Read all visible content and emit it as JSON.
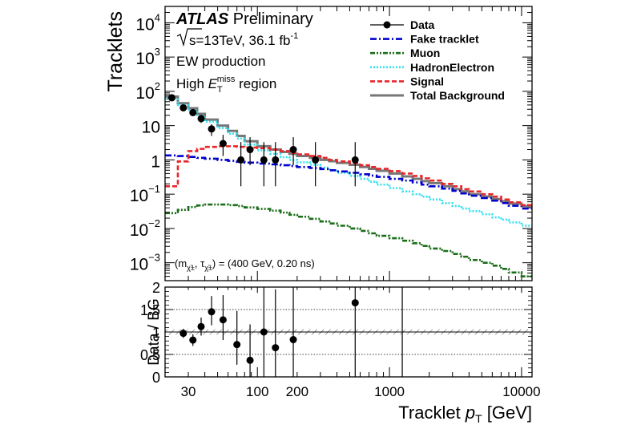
{
  "chart_data": {
    "type": "line",
    "x_scale": "log",
    "y_scale": "log",
    "xlim": [
      20,
      12000
    ],
    "ylim": [
      0.0003,
      30000
    ],
    "ylabel": "Tracklets",
    "xlabel_main": "Tracklet ",
    "xlabel_var": "p",
    "xlabel_sub": "T",
    "xlabel_unit": " [GeV]",
    "x_tick_labels": [
      {
        "value": 30,
        "label": "30"
      },
      {
        "value": 100,
        "label": "100"
      },
      {
        "value": 200,
        "label": "200"
      },
      {
        "value": 1000,
        "label": "1000"
      },
      {
        "value": 10000,
        "label": "10000"
      }
    ],
    "y_tick_labels": [
      {
        "value": 10000,
        "base": "10",
        "exp": "4"
      },
      {
        "value": 1000,
        "base": "10",
        "exp": "3"
      },
      {
        "value": 100,
        "base": "10",
        "exp": "2"
      },
      {
        "value": 10,
        "base": "10",
        "exp": ""
      },
      {
        "value": 1,
        "base": "1",
        "exp": ""
      },
      {
        "value": 0.1,
        "base": "10",
        "exp": "−1"
      },
      {
        "value": 0.01,
        "base": "10",
        "exp": "−2"
      },
      {
        "value": 0.001,
        "base": "10",
        "exp": "−3"
      }
    ],
    "annotations": {
      "atlas": "ATLAS",
      "preliminary": " Preliminary",
      "energy_prefix": "s",
      "energy_rest": "=13TeV, 36.1 fb",
      "energy_exp": "-1",
      "production": "EW production",
      "region_prefix": "High ",
      "region_var": "E",
      "region_sub": "T",
      "region_sup": "miss",
      "region_suffix": " region",
      "model_point": "(m",
      "model_point_rest": ", τ",
      "model_point_end": ") = (400 GeV, 0.20 ns)",
      "chargino_sub": "χ̃±"
    },
    "legend": {
      "placement": "top-right",
      "entries": [
        {
          "label": "Data",
          "style": "marker",
          "color": "#000000"
        },
        {
          "label": "Fake tracklet",
          "style": "dashdot",
          "color": "#0000cc"
        },
        {
          "label": "Muon",
          "style": "dashdotdot",
          "color": "#1a6e1a"
        },
        {
          "label": "HadronElectron",
          "style": "dotted",
          "color": "#33e0f0"
        },
        {
          "label": "Signal",
          "style": "dashed",
          "color": "#e8262a"
        },
        {
          "label": "Total Background",
          "style": "solid",
          "color": "#777777"
        }
      ]
    },
    "bin_edges": [
      20,
      25,
      30,
      35,
      40,
      50,
      60,
      70,
      80,
      100,
      125,
      150,
      175,
      200,
      250,
      300,
      350,
      400,
      500,
      600,
      700,
      800,
      1000,
      1250,
      1500,
      1750,
      2000,
      2500,
      3000,
      3500,
      4000,
      5000,
      6000,
      7000,
      8000,
      10000,
      12000
    ],
    "series": [
      {
        "name": "Total Background",
        "color": "#777777",
        "values": [
          70,
          45,
          32,
          22,
          15,
          10,
          7,
          5,
          3.5,
          2.5,
          2.0,
          1.7,
          1.5,
          1.3,
          1.15,
          1.0,
          0.92,
          0.82,
          0.72,
          0.62,
          0.55,
          0.48,
          0.4,
          0.33,
          0.28,
          0.24,
          0.21,
          0.17,
          0.14,
          0.12,
          0.1,
          0.085,
          0.072,
          0.062,
          0.053,
          0.045
        ]
      },
      {
        "name": "HadronElectron",
        "color": "#33e0f0",
        "values": [
          62,
          40,
          28,
          19,
          13,
          8.5,
          5.8,
          4.2,
          2.8,
          1.9,
          1.5,
          1.2,
          1.0,
          0.85,
          0.72,
          0.6,
          0.5,
          0.42,
          0.34,
          0.28,
          0.23,
          0.19,
          0.15,
          0.12,
          0.1,
          0.085,
          0.07,
          0.055,
          0.045,
          0.038,
          0.032,
          0.026,
          0.021,
          0.018,
          0.015,
          0.012
        ]
      },
      {
        "name": "Fake tracklet",
        "color": "#0000cc",
        "values": [
          1.35,
          1.3,
          1.22,
          1.15,
          1.08,
          1.0,
          0.94,
          0.88,
          0.83,
          0.78,
          0.74,
          0.7,
          0.66,
          0.62,
          0.58,
          0.54,
          0.5,
          0.46,
          0.42,
          0.38,
          0.35,
          0.32,
          0.28,
          0.25,
          0.22,
          0.19,
          0.17,
          0.145,
          0.125,
          0.105,
          0.09,
          0.077,
          0.065,
          0.055,
          0.046,
          0.038
        ]
      },
      {
        "name": "Muon",
        "color": "#1a6e1a",
        "values": [
          0.028,
          0.035,
          0.042,
          0.047,
          0.05,
          0.05,
          0.048,
          0.045,
          0.041,
          0.037,
          0.033,
          0.029,
          0.025,
          0.022,
          0.019,
          0.016,
          0.014,
          0.012,
          0.01,
          0.0085,
          0.0072,
          0.0061,
          0.0052,
          0.0044,
          0.0037,
          0.0031,
          0.0026,
          0.0022,
          0.0018,
          0.0015,
          0.0012,
          0.001,
          0.00082,
          0.00066,
          0.00052,
          0.0004
        ]
      },
      {
        "name": "Signal",
        "color": "#e8262a",
        "values": [
          0.17,
          0.9,
          1.8,
          2.1,
          2.4,
          2.5,
          2.5,
          2.4,
          2.3,
          2.2,
          2.0,
          1.8,
          1.6,
          1.45,
          1.3,
          1.15,
          1.0,
          0.9,
          0.8,
          0.7,
          0.62,
          0.55,
          0.47,
          0.4,
          0.34,
          0.29,
          0.25,
          0.2,
          0.17,
          0.14,
          0.12,
          0.1,
          0.085,
          0.07,
          0.058,
          0.048
        ]
      }
    ],
    "data_points": [
      {
        "x": 22.5,
        "y": 65,
        "yerr_lo": 8,
        "yerr_hi": 8
      },
      {
        "x": 27.5,
        "y": 33,
        "yerr_lo": 6,
        "yerr_hi": 6
      },
      {
        "x": 32.5,
        "y": 24,
        "yerr_lo": 5,
        "yerr_hi": 5
      },
      {
        "x": 37.5,
        "y": 16,
        "yerr_lo": 4,
        "yerr_hi": 4
      },
      {
        "x": 45,
        "y": 8,
        "yerr_lo": 3,
        "yerr_hi": 3
      },
      {
        "x": 55,
        "y": 3,
        "yerr_lo": 1.7,
        "yerr_hi": 2.4
      },
      {
        "x": 75,
        "y": 1,
        "yerr_lo": 0.83,
        "yerr_hi": 2.3
      },
      {
        "x": 88,
        "y": 2,
        "yerr_lo": 1.3,
        "yerr_hi": 2.6
      },
      {
        "x": 112,
        "y": 1,
        "yerr_lo": 0.83,
        "yerr_hi": 2.3
      },
      {
        "x": 137,
        "y": 1,
        "yerr_lo": 0.83,
        "yerr_hi": 2.3
      },
      {
        "x": 187,
        "y": 2,
        "yerr_lo": 1.3,
        "yerr_hi": 2.6
      },
      {
        "x": 275,
        "y": 1,
        "yerr_lo": 0.83,
        "yerr_hi": 2.3
      },
      {
        "x": 550,
        "y": 1,
        "yerr_lo": 0.83,
        "yerr_hi": 2.3
      }
    ],
    "ratio": {
      "ylabel": "Data / BG",
      "ylim": [
        0,
        2
      ],
      "y_tick_labels": [
        "0",
        "0.5",
        "1",
        "1.5",
        "2"
      ],
      "reference_lines": [
        0.5,
        1.5
      ],
      "points": [
        {
          "x": 27.5,
          "y": 0.97,
          "yerr_lo": 0.1,
          "yerr_hi": 0.1
        },
        {
          "x": 32.5,
          "y": 0.82,
          "yerr_lo": 0.13,
          "yerr_hi": 0.13
        },
        {
          "x": 37.5,
          "y": 1.12,
          "yerr_lo": 0.2,
          "yerr_hi": 0.2
        },
        {
          "x": 45,
          "y": 1.45,
          "yerr_lo": 0.3,
          "yerr_hi": 0.35
        },
        {
          "x": 55,
          "y": 1.27,
          "yerr_lo": 0.45,
          "yerr_hi": 0.55
        },
        {
          "x": 70,
          "y": 0.72,
          "yerr_lo": 0.45,
          "yerr_hi": 0.75
        },
        {
          "x": 88,
          "y": 0.37,
          "yerr_lo": 0.37,
          "yerr_hi": 0.8
        },
        {
          "x": 112,
          "y": 1.0,
          "yerr_lo": 1.0,
          "yerr_hi": 1.2
        },
        {
          "x": 137,
          "y": 0.65,
          "yerr_lo": 0.65,
          "yerr_hi": 1.3
        },
        {
          "x": 187,
          "y": 0.83,
          "yerr_lo": 0.83,
          "yerr_hi": 1.2
        },
        {
          "x": 550,
          "y": 1.65,
          "yerr_lo": 1.65,
          "yerr_hi": 0.4
        },
        {
          "x": 1250,
          "y": 1.95,
          "yerr_lo": 1.95,
          "yerr_hi": 0.05
        }
      ]
    }
  }
}
